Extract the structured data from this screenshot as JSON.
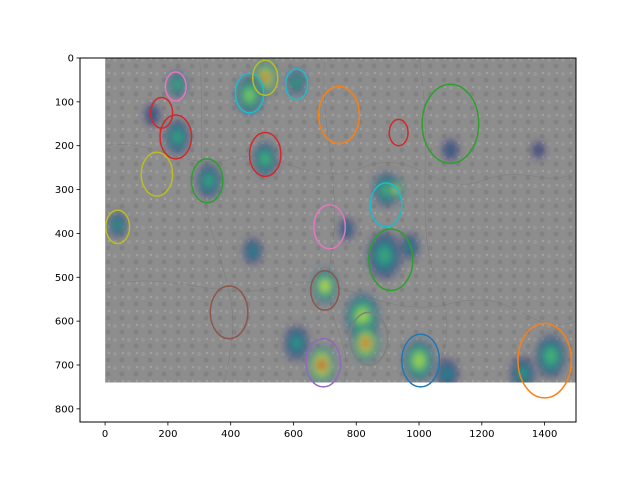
{
  "chart_data": {
    "type": "scatter",
    "title": "",
    "xlabel": "",
    "ylabel": "",
    "xlim": [
      -80,
      1500
    ],
    "ylim": [
      830,
      0
    ],
    "y_inverted": true,
    "grid": false,
    "legend": "none",
    "background": "radar precipitation heatmap over a gray map image",
    "image_extent": {
      "x": [
        0,
        1500
      ],
      "y": [
        0,
        740
      ]
    },
    "x_ticks": [
      0,
      200,
      400,
      600,
      800,
      1000,
      1200,
      1400
    ],
    "y_ticks": [
      0,
      100,
      200,
      300,
      400,
      500,
      600,
      700,
      800
    ],
    "circles": [
      {
        "x": 225,
        "y": 65,
        "r": 33,
        "color": "#e377c2"
      },
      {
        "x": 180,
        "y": 125,
        "r": 35,
        "color": "#d62728"
      },
      {
        "x": 225,
        "y": 180,
        "r": 50,
        "color": "#d62728"
      },
      {
        "x": 165,
        "y": 265,
        "r": 50,
        "color": "#bcbd22"
      },
      {
        "x": 325,
        "y": 280,
        "r": 50,
        "color": "#2ca02c"
      },
      {
        "x": 40,
        "y": 385,
        "r": 38,
        "color": "#bcbd22"
      },
      {
        "x": 460,
        "y": 80,
        "r": 45,
        "color": "#17becf"
      },
      {
        "x": 510,
        "y": 45,
        "r": 40,
        "color": "#bcbd22"
      },
      {
        "x": 610,
        "y": 60,
        "r": 35,
        "color": "#17becf"
      },
      {
        "x": 510,
        "y": 220,
        "r": 50,
        "color": "#d62728"
      },
      {
        "x": 745,
        "y": 130,
        "r": 65,
        "color": "#ff7f0e"
      },
      {
        "x": 935,
        "y": 170,
        "r": 30,
        "color": "#d62728"
      },
      {
        "x": 1100,
        "y": 150,
        "r": 90,
        "color": "#2ca02c"
      },
      {
        "x": 895,
        "y": 335,
        "r": 50,
        "color": "#17becf"
      },
      {
        "x": 715,
        "y": 385,
        "r": 50,
        "color": "#e377c2"
      },
      {
        "x": 910,
        "y": 460,
        "r": 70,
        "color": "#2ca02c"
      },
      {
        "x": 700,
        "y": 530,
        "r": 45,
        "color": "#8c564b"
      },
      {
        "x": 840,
        "y": 640,
        "r": 60,
        "color": "#7f7f7f"
      },
      {
        "x": 695,
        "y": 695,
        "r": 55,
        "color": "#9467bd"
      },
      {
        "x": 1005,
        "y": 690,
        "r": 60,
        "color": "#1f77b4"
      },
      {
        "x": 1400,
        "y": 690,
        "r": 85,
        "color": "#ff7f0e"
      },
      {
        "x": 395,
        "y": 580,
        "r": 60,
        "color": "#8c564b"
      }
    ],
    "heat_blobs": [
      {
        "x": 510,
        "y": 45,
        "r": 40,
        "level": 0.95
      },
      {
        "x": 460,
        "y": 85,
        "r": 45,
        "level": 0.7
      },
      {
        "x": 230,
        "y": 60,
        "r": 30,
        "level": 0.6
      },
      {
        "x": 610,
        "y": 55,
        "r": 30,
        "level": 0.55
      },
      {
        "x": 230,
        "y": 180,
        "r": 40,
        "level": 0.55
      },
      {
        "x": 510,
        "y": 230,
        "r": 40,
        "level": 0.6
      },
      {
        "x": 330,
        "y": 280,
        "r": 40,
        "level": 0.55
      },
      {
        "x": 40,
        "y": 380,
        "r": 30,
        "level": 0.5
      },
      {
        "x": 895,
        "y": 300,
        "r": 40,
        "level": 0.6
      },
      {
        "x": 925,
        "y": 300,
        "r": 25,
        "level": 0.8
      },
      {
        "x": 890,
        "y": 450,
        "r": 55,
        "level": 0.55
      },
      {
        "x": 700,
        "y": 520,
        "r": 40,
        "level": 0.8
      },
      {
        "x": 820,
        "y": 590,
        "r": 55,
        "level": 0.75
      },
      {
        "x": 830,
        "y": 650,
        "r": 45,
        "level": 0.95
      },
      {
        "x": 690,
        "y": 700,
        "r": 45,
        "level": 1.0
      },
      {
        "x": 1000,
        "y": 690,
        "r": 50,
        "level": 0.75
      },
      {
        "x": 1100,
        "y": 210,
        "r": 25,
        "level": 0.35
      },
      {
        "x": 1420,
        "y": 680,
        "r": 50,
        "level": 0.6
      },
      {
        "x": 1330,
        "y": 720,
        "r": 40,
        "level": 0.5
      },
      {
        "x": 470,
        "y": 440,
        "r": 30,
        "level": 0.45
      },
      {
        "x": 610,
        "y": 650,
        "r": 40,
        "level": 0.5
      },
      {
        "x": 1090,
        "y": 720,
        "r": 35,
        "level": 0.45
      },
      {
        "x": 970,
        "y": 430,
        "r": 30,
        "level": 0.45
      },
      {
        "x": 770,
        "y": 390,
        "r": 25,
        "level": 0.4
      },
      {
        "x": 150,
        "y": 130,
        "r": 25,
        "level": 0.35
      },
      {
        "x": 1380,
        "y": 210,
        "r": 20,
        "level": 0.3
      }
    ]
  }
}
